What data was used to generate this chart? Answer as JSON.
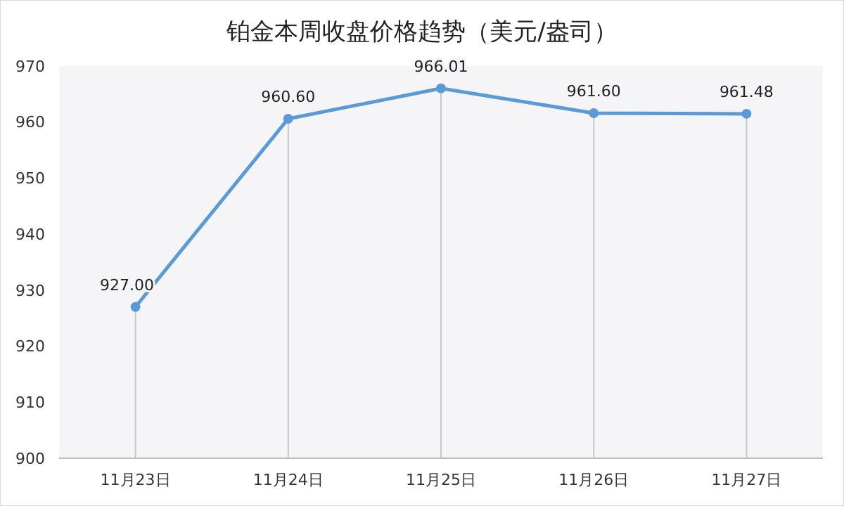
{
  "chart_data": {
    "type": "line",
    "title": "铂金本周收盘价格趋势（美元/盎司）",
    "categories": [
      "11月23日",
      "11月24日",
      "11月25日",
      "11月26日",
      "11月27日"
    ],
    "series": [
      {
        "color": "#5b9bd5",
        "values": [
          927.0,
          960.6,
          966.01,
          961.6,
          961.48
        ],
        "value_labels": [
          "927.00",
          "960.60",
          "966.01",
          "961.60",
          "961.48"
        ]
      }
    ],
    "ylim": [
      900,
      970
    ],
    "yticks": [
      900,
      910,
      920,
      930,
      940,
      950,
      960,
      970
    ],
    "grid": "x",
    "marker": "circle",
    "line_style": "solid"
  }
}
